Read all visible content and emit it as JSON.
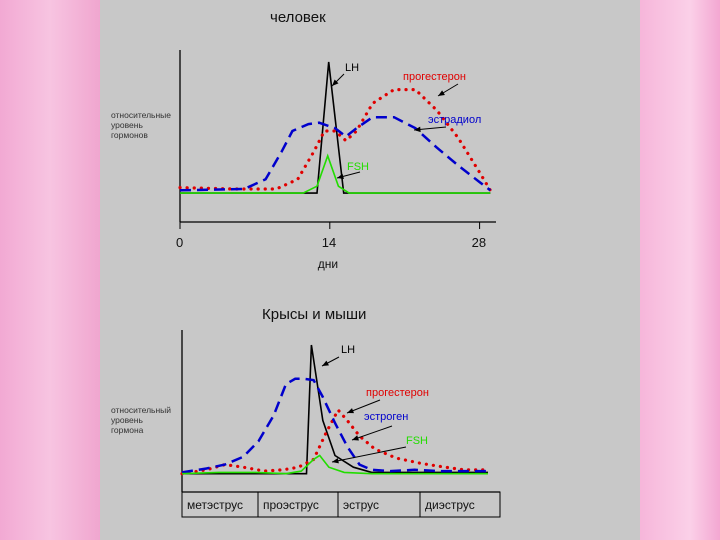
{
  "chart_data": [
    {
      "type": "line",
      "title": "человек",
      "xlabel": "дни",
      "ylabel": "относительные уровень гормонов",
      "xlim": [
        0,
        29
      ],
      "x_ticks": [
        {
          "value": 0,
          "label": "0"
        },
        {
          "value": 14,
          "label": "14"
        },
        {
          "value": 28,
          "label": "28"
        }
      ],
      "series": [
        {
          "name": "LH",
          "color": "#000000",
          "style": "solid",
          "x": [
            0,
            12.8,
            13.9,
            15.3,
            29
          ],
          "y": [
            0.05,
            0.05,
            1.0,
            0.05,
            0.05
          ]
        },
        {
          "name": "прогестерон",
          "color": "#e00000",
          "style": "dotted",
          "x": [
            0,
            5,
            9,
            11,
            12.5,
            13.5,
            14.5,
            15.5,
            16.5,
            18,
            20,
            22,
            24,
            26,
            28,
            29
          ],
          "y": [
            0.09,
            0.08,
            0.08,
            0.15,
            0.35,
            0.5,
            0.5,
            0.43,
            0.5,
            0.7,
            0.8,
            0.8,
            0.65,
            0.45,
            0.2,
            0.07
          ]
        },
        {
          "name": "эстрадиол",
          "color": "#0000cc",
          "style": "dashed",
          "x": [
            0,
            6,
            8,
            9.5,
            10.5,
            12,
            13,
            14.5,
            15.5,
            16.5,
            18,
            20,
            22,
            24,
            26,
            28,
            29
          ],
          "y": [
            0.07,
            0.08,
            0.15,
            0.35,
            0.5,
            0.55,
            0.56,
            0.52,
            0.46,
            0.52,
            0.6,
            0.6,
            0.52,
            0.38,
            0.25,
            0.13,
            0.07
          ]
        },
        {
          "name": "FSH",
          "color": "#22dd00",
          "style": "solid",
          "x": [
            0,
            11.5,
            12.8,
            13.8,
            14.8,
            15.8,
            29
          ],
          "y": [
            0.05,
            0.05,
            0.1,
            0.32,
            0.1,
            0.05,
            0.05
          ]
        }
      ],
      "grid": false
    },
    {
      "type": "line",
      "title": "Крысы и мыши",
      "ylabel": "относительный уровень гормона",
      "categories": [
        "метэструс",
        "проэструс",
        "эструс",
        "диэструс"
      ],
      "xlim": [
        0,
        100
      ],
      "series": [
        {
          "name": "LH",
          "color": "#000000",
          "style": "solid",
          "x": [
            0,
            40.7,
            42.3,
            46,
            50,
            56,
            62,
            100
          ],
          "y": [
            0.01,
            0.01,
            1.0,
            0.42,
            0.15,
            0.06,
            0.02,
            0.02
          ]
        },
        {
          "name": "прогестерон",
          "color": "#e00000",
          "style": "dotted",
          "x": [
            0,
            8,
            14,
            20,
            27,
            33,
            38,
            43,
            47,
            51,
            54,
            58,
            63,
            70,
            78,
            86,
            92,
            100
          ],
          "y": [
            0.01,
            0.04,
            0.08,
            0.06,
            0.03,
            0.04,
            0.06,
            0.12,
            0.32,
            0.5,
            0.42,
            0.3,
            0.2,
            0.13,
            0.09,
            0.06,
            0.04,
            0.04
          ]
        },
        {
          "name": "эстроген",
          "color": "#0000cc",
          "style": "dashed",
          "x": [
            0,
            8,
            14,
            20,
            25,
            30,
            34,
            37,
            40,
            43,
            46,
            50,
            54,
            58,
            62,
            68,
            76,
            84,
            92,
            100
          ],
          "y": [
            0.02,
            0.05,
            0.08,
            0.14,
            0.26,
            0.46,
            0.7,
            0.74,
            0.74,
            0.73,
            0.6,
            0.4,
            0.22,
            0.08,
            0.04,
            0.03,
            0.04,
            0.03,
            0.03,
            0.03
          ]
        },
        {
          "name": "FSH",
          "color": "#22dd00",
          "style": "solid",
          "x": [
            0,
            12,
            24,
            34,
            39,
            43,
            45,
            48,
            53,
            62,
            100
          ],
          "y": [
            0.01,
            0.02,
            0.02,
            0.01,
            0.03,
            0.12,
            0.15,
            0.06,
            0.02,
            0.01,
            0.01
          ]
        }
      ],
      "grid": false
    }
  ]
}
